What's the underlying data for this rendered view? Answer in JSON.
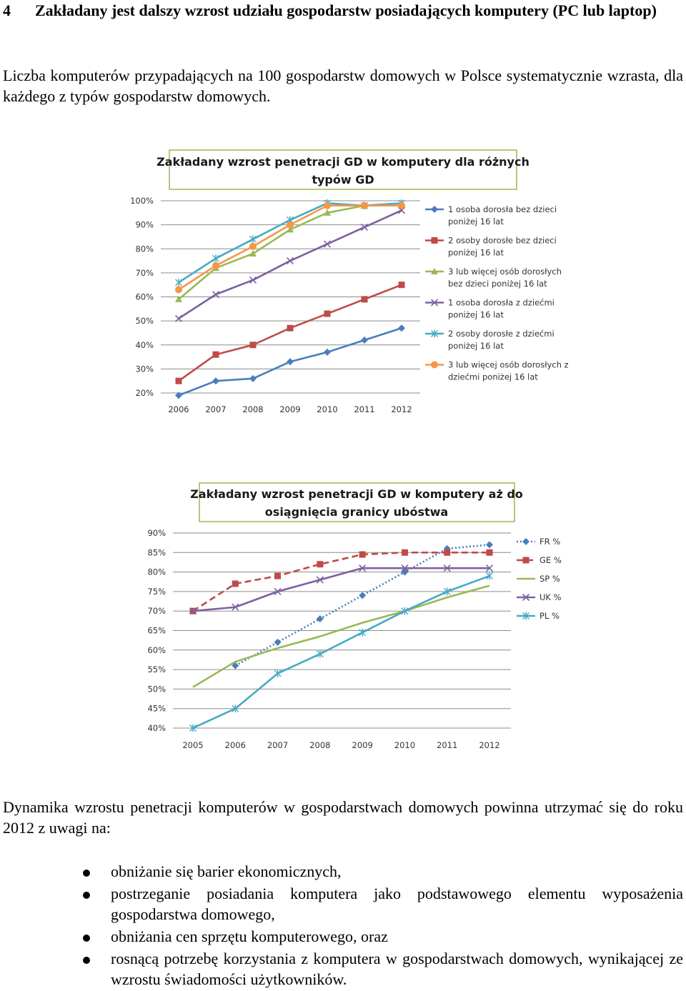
{
  "heading": {
    "number": "4",
    "text": "Zakładany jest dalszy wzrost udziału gospodarstw posiadających komputery (PC lub laptop)"
  },
  "paragraph1": "Liczba komputerów przypadających na 100 gospodarstw domowych w Polsce systematycznie wzrasta, dla każdego z typów gospodarstw domowych.",
  "chart_data": [
    {
      "type": "line",
      "title_line1": "Zakładany wzrost penetracji GD w komputery dla różnych",
      "title_line2": "typów GD",
      "x": [
        "2006",
        "2007",
        "2008",
        "2009",
        "2010",
        "2011",
        "2012"
      ],
      "ylim": [
        20,
        100
      ],
      "yticks": [
        "20%",
        "30%",
        "40%",
        "50%",
        "60%",
        "70%",
        "80%",
        "90%",
        "100%"
      ],
      "grid": true,
      "legend_position": "right",
      "series": [
        {
          "name_line1": "1 osoba dorosła bez dzieci",
          "name_line2": "poniżej 16 lat",
          "color": "#4a7ebb",
          "marker": "diamond",
          "values": [
            19,
            25,
            26,
            33,
            37,
            42,
            47
          ]
        },
        {
          "name_line1": "2 osoby dorosłe bez dzieci",
          "name_line2": "poniżej 16 lat",
          "color": "#be4b48",
          "marker": "square",
          "values": [
            25,
            36,
            40,
            47,
            53,
            59,
            65
          ]
        },
        {
          "name_line1": "3 lub więcej osób dorosłych",
          "name_line2": "bez dzieci poniżej 16 lat",
          "color": "#98b954",
          "marker": "triangle",
          "values": [
            59,
            72,
            78,
            88,
            95,
            98,
            98
          ]
        },
        {
          "name_line1": "1 osoba dorosła z dziećmi",
          "name_line2": "poniżej 16 lat",
          "color": "#7d60a0",
          "marker": "x",
          "values": [
            51,
            61,
            67,
            75,
            82,
            89,
            96
          ]
        },
        {
          "name_line1": "2 osoby dorosłe z dziećmi",
          "name_line2": "poniżej 16 lat",
          "color": "#46aac5",
          "marker": "star",
          "values": [
            66,
            76,
            84,
            92,
            99,
            98,
            99
          ]
        },
        {
          "name_line1": "3 lub więcej osób dorosłych z",
          "name_line2": "dziećmi poniżej 16 lat",
          "color": "#f79646",
          "marker": "circle",
          "values": [
            63,
            73,
            81,
            90,
            98,
            98,
            98
          ]
        }
      ]
    },
    {
      "type": "line",
      "title_line1": "Zakładany wzrost penetracji GD w komputery aż do",
      "title_line2": "osiągnięcia granicy ubóstwa",
      "x": [
        "2005",
        "2006",
        "2007",
        "2008",
        "2009",
        "2010",
        "2011",
        "2012"
      ],
      "ylim": [
        40,
        90
      ],
      "yticks": [
        "40%",
        "45%",
        "50%",
        "55%",
        "60%",
        "65%",
        "70%",
        "75%",
        "80%",
        "85%",
        "90%"
      ],
      "grid": true,
      "legend_position": "right",
      "series": [
        {
          "name": "FR %",
          "color": "#4a7ebb",
          "dash": "dotted",
          "marker": "diamond",
          "values": [
            null,
            56,
            62,
            68,
            74,
            80,
            86,
            87
          ]
        },
        {
          "name": "GE %",
          "color": "#be4b48",
          "dash": "dashed",
          "marker": "square",
          "values": [
            70,
            77,
            79,
            82,
            84.5,
            85,
            85,
            85
          ]
        },
        {
          "name": "SP %",
          "color": "#98b954",
          "dash": "solid",
          "marker": "none",
          "values": [
            50.5,
            57,
            60.5,
            63.5,
            67,
            70,
            73.5,
            76.5
          ]
        },
        {
          "name": "UK %",
          "color": "#7d60a0",
          "dash": "solid",
          "marker": "x",
          "values": [
            70,
            71,
            75,
            78,
            81,
            81,
            81,
            81
          ]
        },
        {
          "name": "PL %",
          "color": "#46aac5",
          "dash": "solid",
          "marker": "star",
          "values": [
            40,
            45,
            54,
            59,
            64.5,
            70,
            75,
            79
          ]
        }
      ]
    }
  ],
  "paragraph2": "Dynamika wzrostu penetracji komputerów w gospodarstwach domowych powinna utrzymać się do roku 2012 z uwagi na:",
  "bullets": [
    "obniżanie się barier ekonomicznych,",
    "postrzeganie posiadania komputera jako podstawowego elementu wyposażenia gospodarstwa domowego,",
    "obniżania cen sprzętu komputerowego, oraz",
    "rosnącą potrzebę korzystania z komputera w gospodarstwach domowych, wynikającej ze wzrostu świadomości użytkowników."
  ]
}
